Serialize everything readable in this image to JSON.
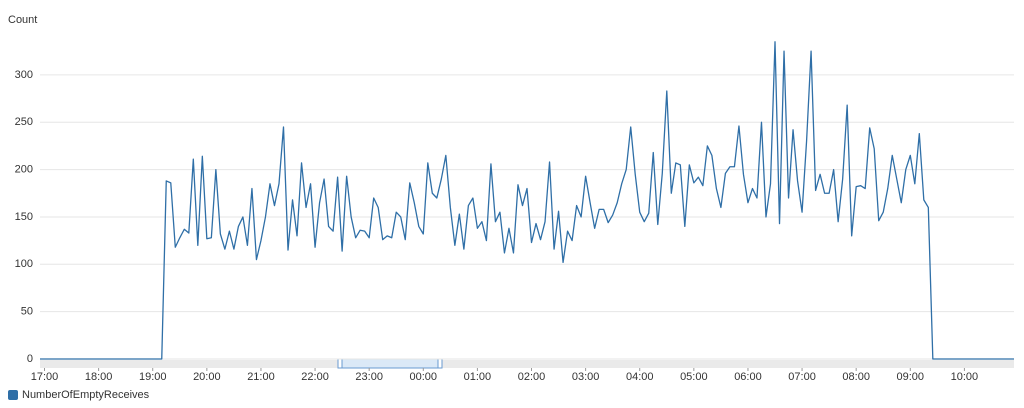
{
  "chart_data": {
    "type": "line",
    "y_label": "Count",
    "x": [
      "16:55",
      "17:00",
      "17:05",
      "17:10",
      "17:15",
      "17:20",
      "17:25",
      "17:30",
      "17:35",
      "17:40",
      "17:45",
      "17:50",
      "17:55",
      "18:00",
      "18:05",
      "18:10",
      "18:15",
      "18:20",
      "18:25",
      "18:30",
      "18:35",
      "18:40",
      "18:45",
      "18:50",
      "18:55",
      "19:00",
      "19:05",
      "19:10",
      "19:15",
      "19:20",
      "19:25",
      "19:30",
      "19:35",
      "19:40",
      "19:45",
      "19:50",
      "19:55",
      "20:00",
      "20:05",
      "20:10",
      "20:15",
      "20:20",
      "20:25",
      "20:30",
      "20:35",
      "20:40",
      "20:45",
      "20:50",
      "20:55",
      "21:00",
      "21:05",
      "21:10",
      "21:15",
      "21:20",
      "21:25",
      "21:30",
      "21:35",
      "21:40",
      "21:45",
      "21:50",
      "21:55",
      "22:00",
      "22:05",
      "22:10",
      "22:15",
      "22:20",
      "22:25",
      "22:30",
      "22:35",
      "22:40",
      "22:45",
      "22:50",
      "22:55",
      "23:00",
      "23:05",
      "23:10",
      "23:15",
      "23:20",
      "23:25",
      "23:30",
      "23:35",
      "23:40",
      "23:45",
      "23:50",
      "23:55",
      "00:00",
      "00:05",
      "00:10",
      "00:15",
      "00:20",
      "00:25",
      "00:30",
      "00:35",
      "00:40",
      "00:45",
      "00:50",
      "00:55",
      "01:00",
      "01:05",
      "01:10",
      "01:15",
      "01:20",
      "01:25",
      "01:30",
      "01:35",
      "01:40",
      "01:45",
      "01:50",
      "01:55",
      "02:00",
      "02:05",
      "02:10",
      "02:15",
      "02:20",
      "02:25",
      "02:30",
      "02:35",
      "02:40",
      "02:45",
      "02:50",
      "02:55",
      "03:00",
      "03:05",
      "03:10",
      "03:15",
      "03:20",
      "03:25",
      "03:30",
      "03:35",
      "03:40",
      "03:45",
      "03:50",
      "03:55",
      "04:00",
      "04:05",
      "04:10",
      "04:15",
      "04:20",
      "04:25",
      "04:30",
      "04:35",
      "04:40",
      "04:45",
      "04:50",
      "04:55",
      "05:00",
      "05:05",
      "05:10",
      "05:15",
      "05:20",
      "05:25",
      "05:30",
      "05:35",
      "05:40",
      "05:45",
      "05:50",
      "05:55",
      "06:00",
      "06:05",
      "06:10",
      "06:15",
      "06:20",
      "06:25",
      "06:30",
      "06:35",
      "06:40",
      "06:45",
      "06:50",
      "06:55",
      "07:00",
      "07:05",
      "07:10",
      "07:15",
      "07:20",
      "07:25",
      "07:30",
      "07:35",
      "07:40",
      "07:45",
      "07:50",
      "07:55",
      "08:00",
      "08:05",
      "08:10",
      "08:15",
      "08:20",
      "08:25",
      "08:30",
      "08:35",
      "08:40",
      "08:45",
      "08:50",
      "08:55",
      "09:00",
      "09:05",
      "09:10",
      "09:15",
      "09:20",
      "09:25",
      "09:30",
      "09:35",
      "09:40",
      "09:45",
      "09:50",
      "09:55",
      "10:00",
      "10:05",
      "10:10",
      "10:15",
      "10:20",
      "10:25",
      "10:30",
      "10:35",
      "10:40",
      "10:45",
      "10:50",
      "10:55"
    ],
    "series": [
      {
        "name": "NumberOfEmptyReceives",
        "color": "#2f6fa7",
        "values": [
          0,
          0,
          0,
          0,
          0,
          0,
          0,
          0,
          0,
          0,
          0,
          0,
          0,
          0,
          0,
          0,
          0,
          0,
          0,
          0,
          0,
          0,
          0,
          0,
          0,
          0,
          0,
          0,
          188,
          186,
          118,
          128,
          137,
          133,
          211,
          120,
          214,
          127,
          128,
          200,
          132,
          116,
          135,
          116,
          140,
          150,
          120,
          180,
          105,
          125,
          150,
          185,
          162,
          185,
          245,
          115,
          168,
          130,
          207,
          160,
          185,
          118,
          165,
          190,
          140,
          135,
          192,
          114,
          193,
          150,
          128,
          136,
          135,
          128,
          170,
          160,
          126,
          130,
          128,
          155,
          150,
          126,
          186,
          165,
          140,
          132,
          207,
          175,
          170,
          190,
          215,
          160,
          120,
          153,
          116,
          162,
          170,
          138,
          145,
          125,
          206,
          145,
          155,
          112,
          138,
          112,
          184,
          162,
          180,
          123,
          143,
          126,
          145,
          208,
          116,
          156,
          102,
          135,
          125,
          162,
          150,
          193,
          165,
          138,
          158,
          158,
          144,
          152,
          165,
          185,
          200,
          245,
          195,
          155,
          145,
          154,
          218,
          142,
          196,
          283,
          175,
          207,
          205,
          140,
          205,
          186,
          192,
          183,
          225,
          215,
          180,
          160,
          196,
          203,
          203,
          246,
          195,
          165,
          180,
          170,
          250,
          150,
          185,
          335,
          143,
          325,
          170,
          242,
          188,
          155,
          230,
          325,
          178,
          195,
          175,
          175,
          200,
          145,
          190,
          268,
          130,
          182,
          183,
          180,
          244,
          222,
          146,
          155,
          180,
          215,
          190,
          165,
          200,
          215,
          185,
          238,
          168,
          160,
          0,
          0,
          0,
          0,
          0,
          0,
          0,
          0,
          0,
          0,
          0,
          0,
          0,
          0,
          0,
          0,
          0,
          0,
          0
        ]
      }
    ],
    "ylim": [
      0,
      340
    ],
    "yticks": [
      0,
      50,
      100,
      150,
      200,
      250,
      300
    ],
    "xticks": [
      "17:00",
      "18:00",
      "19:00",
      "20:00",
      "21:00",
      "22:00",
      "23:00",
      "00:00",
      "01:00",
      "02:00",
      "03:00",
      "04:00",
      "05:00",
      "06:00",
      "07:00",
      "08:00",
      "09:00",
      "10:00"
    ],
    "grid": true,
    "legend": "bottom-left"
  }
}
